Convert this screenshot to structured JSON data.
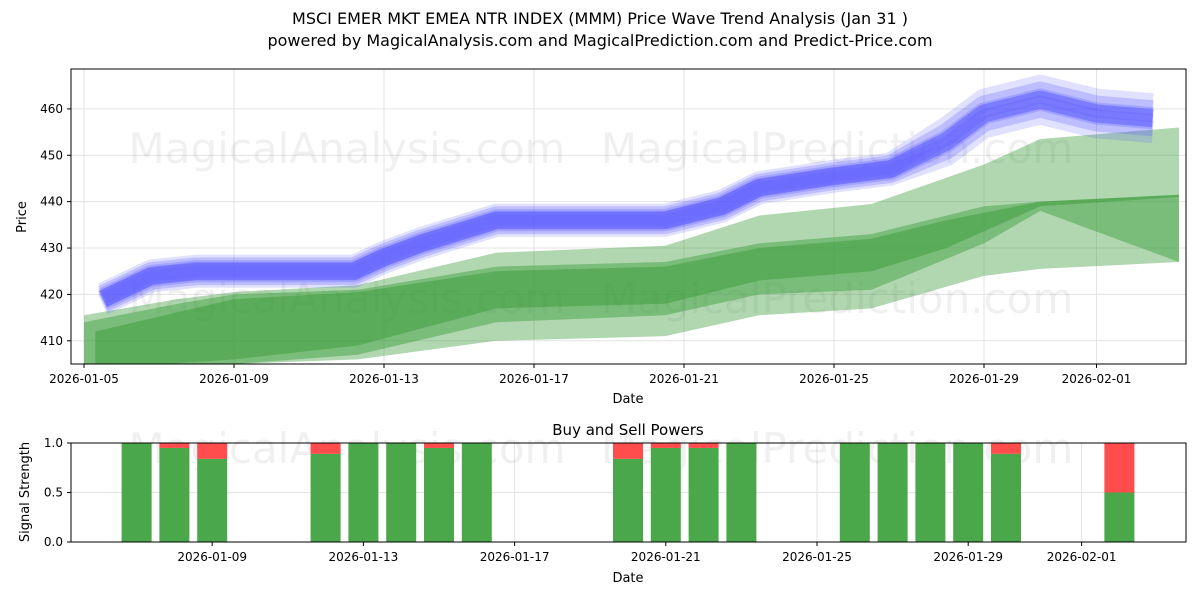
{
  "title": "MSCI EMER MKT EMEA NTR INDEX (MMM) Price Wave Trend Analysis (Jan 31 )",
  "subtitle": "powered by MagicalAnalysis.com and MagicalPrediction.com and Predict-Price.com",
  "watermarks": [
    "MagicalAnalysis.com",
    "MagicalPrediction.com"
  ],
  "colors": {
    "blue": "#5555ff",
    "green": "#3a9c3a",
    "buy": "#4aa84a",
    "sell": "#ff4d4d"
  },
  "chart_data": [
    {
      "type": "area",
      "title": "",
      "xlabel": "Date",
      "ylabel": "Price",
      "x_origin_date": "2026-01-05",
      "xlim_days": [
        -0.35,
        29.4
      ],
      "ylim": [
        405,
        468.6
      ],
      "yticks": [
        410,
        420,
        430,
        440,
        450,
        460
      ],
      "xticks": [
        {
          "day": 0,
          "label": "2026-01-05"
        },
        {
          "day": 4,
          "label": "2026-01-09"
        },
        {
          "day": 8,
          "label": "2026-01-13"
        },
        {
          "day": 12,
          "label": "2026-01-17"
        },
        {
          "day": 16,
          "label": "2026-01-21"
        },
        {
          "day": 20,
          "label": "2026-01-25"
        },
        {
          "day": 24,
          "label": "2026-01-29"
        },
        {
          "day": 27,
          "label": "2026-02-01"
        }
      ],
      "grid": true,
      "blue_wave": {
        "days": [
          0.5,
          1.8,
          3,
          5,
          7.2,
          8,
          9,
          11,
          13,
          15.5,
          17,
          18,
          20,
          21.5,
          23,
          24,
          25.5,
          27,
          28.5
        ],
        "center": [
          419,
          424,
          425,
          425,
          425,
          428,
          431,
          436,
          436,
          436,
          439,
          443,
          445.5,
          447,
          453,
          459,
          462,
          459,
          458
        ],
        "spread": 3.5
      },
      "green_bands": [
        {
          "name": "outer",
          "days": [
            0,
            2.5,
            4,
            7.3,
            11,
            15.5,
            18,
            21,
            24,
            25.5,
            29.2
          ],
          "upper": [
            415.5,
            419,
            420.5,
            422,
            429,
            430.5,
            437,
            439.5,
            448,
            453.5,
            456
          ],
          "lower": [
            404,
            404.5,
            405,
            406,
            410,
            411,
            415.5,
            417,
            424,
            425.5,
            427
          ],
          "opacity": 0.4
        },
        {
          "name": "middle",
          "days": [
            0,
            2.5,
            4,
            7.3,
            11,
            15.5,
            18,
            21,
            24,
            25.5,
            29.2
          ],
          "upper": [
            414,
            418,
            420,
            421,
            426,
            427,
            431,
            433,
            439,
            440,
            441.5
          ],
          "lower": [
            403,
            404,
            405,
            407,
            414,
            415.5,
            420,
            421,
            431,
            438,
            427
          ],
          "opacity": 0.45
        },
        {
          "name": "inner",
          "days": [
            0.3,
            4,
            7.3,
            11,
            15.5,
            18,
            21,
            23,
            25.5,
            29.2
          ],
          "upper": [
            412,
            419,
            420.5,
            425,
            426,
            430,
            432,
            436,
            440,
            441.5
          ],
          "lower": [
            404,
            406,
            409,
            417,
            418,
            423,
            425,
            430,
            439,
            441
          ],
          "opacity": 0.5
        }
      ]
    },
    {
      "type": "bar",
      "title": "Buy and Sell Powers",
      "xlabel": "Date",
      "ylabel": "Signal Strength",
      "ylim": [
        0,
        1
      ],
      "yticks": [
        "0.0",
        "0.5",
        "1.0"
      ],
      "xticks": [
        {
          "day": 4,
          "label": "2026-01-09"
        },
        {
          "day": 8,
          "label": "2026-01-13"
        },
        {
          "day": 12,
          "label": "2026-01-17"
        },
        {
          "day": 16,
          "label": "2026-01-21"
        },
        {
          "day": 20,
          "label": "2026-01-25"
        },
        {
          "day": 24,
          "label": "2026-01-29"
        },
        {
          "day": 27,
          "label": "2026-02-01"
        }
      ],
      "categories": [
        "2026-01-07",
        "2026-01-08",
        "2026-01-09",
        "2026-01-12",
        "2026-01-13",
        "2026-01-14",
        "2026-01-15",
        "2026-01-16",
        "2026-01-20",
        "2026-01-21",
        "2026-01-22",
        "2026-01-23",
        "2026-01-26",
        "2026-01-27",
        "2026-01-28",
        "2026-01-29",
        "2026-01-30",
        "2026-02-02"
      ],
      "days": [
        2,
        3,
        4,
        7,
        8,
        9,
        10,
        11,
        15,
        16,
        17,
        18,
        21,
        22,
        23,
        24,
        25,
        28
      ],
      "series": [
        {
          "name": "Buy",
          "values": [
            1.0,
            0.95,
            0.84,
            0.89,
            1.0,
            1.0,
            0.95,
            1.0,
            0.84,
            0.95,
            0.95,
            1.0,
            1.0,
            1.0,
            1.0,
            1.0,
            0.89,
            0.5
          ]
        },
        {
          "name": "Sell",
          "values": [
            0.0,
            0.05,
            0.16,
            0.11,
            0.0,
            0.0,
            0.05,
            0.0,
            0.16,
            0.05,
            0.05,
            0.0,
            0.0,
            0.0,
            0.0,
            0.0,
            0.11,
            0.5
          ]
        }
      ]
    }
  ]
}
